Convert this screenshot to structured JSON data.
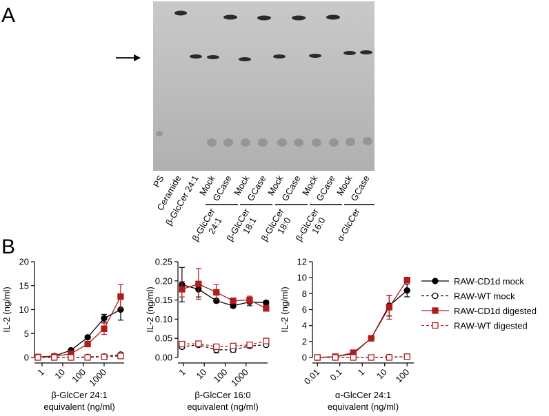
{
  "panel_a": {
    "label": "A",
    "lanes": [
      "PS",
      "Ceramide",
      "β-GlcCer 24:1",
      "Mock",
      "GCase",
      "Mock",
      "GCase",
      "Mock",
      "GCase",
      "Mock",
      "GCase",
      "Mock",
      "GCase"
    ],
    "groups": [
      [
        "β-GlcCer",
        "24:1"
      ],
      [
        "β-GlcCer",
        "18:1"
      ],
      [
        "β-GlcCer",
        "18:0"
      ],
      [
        "β-GlcCer",
        "16:0"
      ],
      [
        "α-GlcCer"
      ]
    ]
  },
  "panel_b": {
    "label": "B"
  },
  "chart_data": [
    {
      "type": "line",
      "ylabel": "IL-2 (ng/ml)",
      "xlabel": [
        "β-GlcCer 24:1",
        "equivalent (ng/ml)"
      ],
      "xscale": "log",
      "x": [
        0.63,
        3.9,
        25,
        160,
        1000,
        6300
      ],
      "xlim": [
        0.43,
        9300
      ],
      "xticks": [
        1,
        10,
        100,
        1000
      ],
      "ylim": [
        0,
        20
      ],
      "yticks": [
        0,
        5,
        10,
        15,
        20
      ],
      "series": [
        {
          "name": "RAW-CD1d mock",
          "color": "#000000",
          "marker": "circle",
          "filled": true,
          "dashed": false,
          "values": [
            0.1,
            0.3,
            1.5,
            4.2,
            8.2,
            10.0
          ],
          "errors": [
            0.1,
            0.1,
            0.2,
            0.3,
            0.8,
            2.2
          ]
        },
        {
          "name": "RAW-WT mock",
          "color": "#000000",
          "marker": "circle",
          "filled": false,
          "dashed": true,
          "values": [
            0,
            0,
            0,
            0.1,
            0.2,
            0.6
          ],
          "errors": [
            0,
            0,
            0,
            0.1,
            0.1,
            0.3
          ]
        },
        {
          "name": "RAW-CD1d digested",
          "color": "#b01c1c",
          "marker": "square",
          "filled": true,
          "dashed": false,
          "values": [
            0.1,
            0.2,
            0.8,
            2.8,
            6.0,
            12.7
          ],
          "errors": [
            0.1,
            0.1,
            0.2,
            0.3,
            1.2,
            2.5
          ]
        },
        {
          "name": "RAW-WT digested",
          "color": "#b01c1c",
          "marker": "square",
          "filled": false,
          "dashed": true,
          "values": [
            0,
            0,
            0,
            0,
            0.1,
            0.3
          ],
          "errors": [
            0,
            0,
            0,
            0,
            0.1,
            0.2
          ]
        }
      ]
    },
    {
      "type": "line",
      "ylabel": "IL-2 (ng/ml)",
      "xlabel": [
        "β-GlcCer 16:0",
        "equivalent (ng/ml)"
      ],
      "xscale": "log",
      "x": [
        0.86,
        5.3,
        38,
        240,
        1480,
        9100
      ],
      "xlim": [
        0.55,
        10700
      ],
      "xticks": [
        1,
        10,
        100,
        1000
      ],
      "ylim": [
        0,
        0.25
      ],
      "yticks": [
        {
          "value": 0,
          "label": "0.00"
        },
        0.05,
        {
          "value": 0.1,
          "label": "0.10"
        },
        0.15,
        {
          "value": 0.2,
          "label": "0.20"
        },
        0.25
      ],
      "series": [
        {
          "name": "RAW-CD1d mock",
          "color": "#000000",
          "marker": "circle",
          "filled": true,
          "dashed": false,
          "values": [
            0.19,
            0.178,
            0.148,
            0.135,
            0.145,
            0.143
          ],
          "errors": [
            0.045,
            0.02,
            0.005,
            0.005,
            0.01,
            0.005
          ]
        },
        {
          "name": "RAW-WT mock",
          "color": "#000000",
          "marker": "circle",
          "filled": false,
          "dashed": true,
          "values": [
            0.028,
            0.033,
            0.02,
            0.02,
            0.03,
            0.033
          ],
          "errors": [
            0.005,
            0.005,
            0.008,
            0.006,
            0.005,
            0.004
          ]
        },
        {
          "name": "RAW-CD1d digested",
          "color": "#b01c1c",
          "marker": "square",
          "filled": true,
          "dashed": false,
          "values": [
            0.178,
            0.192,
            0.17,
            0.148,
            0.15,
            0.128
          ],
          "errors": [
            0.02,
            0.04,
            0.02,
            0.005,
            0.01,
            0.005
          ]
        },
        {
          "name": "RAW-WT digested",
          "color": "#b01c1c",
          "marker": "square",
          "filled": false,
          "dashed": true,
          "values": [
            0.035,
            0.036,
            0.028,
            0.03,
            0.033,
            0.043
          ],
          "errors": [
            0.005,
            0.005,
            0.004,
            0.005,
            0.006,
            0.004
          ]
        }
      ]
    },
    {
      "type": "line",
      "ylabel": "IL-2 (ng/ml)",
      "xlabel": [
        "α-GlcCer 24:1",
        "equivalent (ng/ml)"
      ],
      "xscale": "log",
      "x": [
        0.01,
        0.063,
        0.4,
        2.5,
        16,
        100
      ],
      "xlim": [
        0.006,
        200
      ],
      "xticks": [
        0.01,
        0.1,
        1,
        10,
        100
      ],
      "ylim": [
        0,
        12
      ],
      "yticks": [
        0,
        2,
        4,
        6,
        8,
        10,
        12
      ],
      "series": [
        {
          "name": "RAW-CD1d mock",
          "color": "#000000",
          "marker": "circle",
          "filled": true,
          "dashed": false,
          "values": [
            0,
            0.1,
            0.5,
            2.4,
            6.5,
            8.4
          ],
          "errors": [
            0,
            0,
            0.1,
            0.1,
            1.3,
            0.8
          ]
        },
        {
          "name": "RAW-WT mock",
          "color": "#000000",
          "marker": "circle",
          "filled": false,
          "dashed": true,
          "values": [
            0,
            0,
            0,
            0,
            0.05,
            0.1
          ],
          "errors": [
            0,
            0,
            0,
            0,
            0,
            0.1
          ]
        },
        {
          "name": "RAW-CD1d digested",
          "color": "#b01c1c",
          "marker": "square",
          "filled": true,
          "dashed": false,
          "values": [
            0,
            0.1,
            0.6,
            2.4,
            6.3,
            9.7
          ],
          "errors": [
            0,
            0,
            0.1,
            0.1,
            1.5,
            0.2
          ]
        },
        {
          "name": "RAW-WT digested",
          "color": "#b01c1c",
          "marker": "square",
          "filled": false,
          "dashed": true,
          "values": [
            0,
            0,
            0,
            0,
            0,
            0.1
          ],
          "errors": [
            0,
            0,
            0,
            0,
            0,
            0.1
          ]
        }
      ]
    }
  ]
}
